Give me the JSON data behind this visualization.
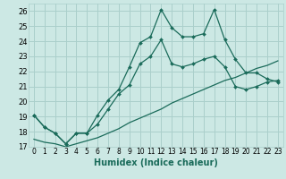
{
  "xlabel": "Humidex (Indice chaleur)",
  "background_color": "#cce8e4",
  "grid_color": "#aacfcb",
  "line_color": "#1a6b5a",
  "xlim": [
    -0.5,
    23.5
  ],
  "ylim": [
    17,
    26.5
  ],
  "yticks": [
    17,
    18,
    19,
    20,
    21,
    22,
    23,
    24,
    25,
    26
  ],
  "xticks": [
    0,
    1,
    2,
    3,
    4,
    5,
    6,
    7,
    8,
    9,
    10,
    11,
    12,
    13,
    14,
    15,
    16,
    17,
    18,
    19,
    20,
    21,
    22,
    23
  ],
  "line1_x": [
    0,
    1,
    2,
    3,
    4,
    5,
    6,
    7,
    8,
    9,
    10,
    11,
    12,
    13,
    14,
    15,
    16,
    17,
    18,
    19,
    20,
    21,
    22,
    23
  ],
  "line1_y": [
    19.1,
    18.3,
    17.9,
    17.2,
    17.9,
    17.9,
    19.1,
    20.1,
    20.8,
    22.3,
    23.9,
    24.3,
    26.1,
    24.9,
    24.3,
    24.3,
    24.5,
    26.1,
    24.1,
    22.8,
    21.9,
    21.9,
    21.5,
    21.3
  ],
  "line2_x": [
    0,
    1,
    2,
    3,
    4,
    5,
    6,
    7,
    8,
    9,
    10,
    11,
    12,
    13,
    14,
    15,
    16,
    17,
    18,
    19,
    20,
    21,
    22,
    23
  ],
  "line2_y": [
    19.1,
    18.3,
    17.9,
    17.2,
    17.9,
    17.9,
    18.5,
    19.5,
    20.5,
    21.1,
    22.5,
    23.0,
    24.1,
    22.5,
    22.3,
    22.5,
    22.8,
    23.0,
    22.3,
    21.0,
    20.8,
    21.0,
    21.3,
    21.4
  ],
  "line3_x": [
    0,
    1,
    2,
    3,
    4,
    5,
    6,
    7,
    8,
    9,
    10,
    11,
    12,
    13,
    14,
    15,
    16,
    17,
    18,
    19,
    20,
    21,
    22,
    23
  ],
  "line3_y": [
    17.5,
    17.3,
    17.2,
    17.0,
    17.2,
    17.4,
    17.6,
    17.9,
    18.2,
    18.6,
    18.9,
    19.2,
    19.5,
    19.9,
    20.2,
    20.5,
    20.8,
    21.1,
    21.4,
    21.6,
    21.9,
    22.2,
    22.4,
    22.7
  ]
}
